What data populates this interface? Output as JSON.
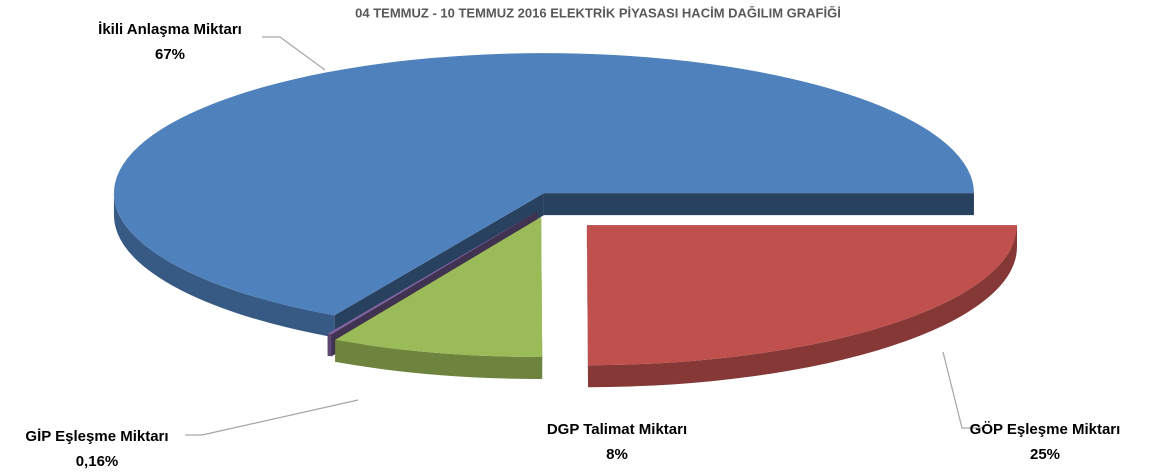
{
  "chart_data": {
    "type": "pie",
    "title": "04 TEMMUZ - 10 TEMMUZ 2016 ELEKTRİK PİYASASI HACİM DAĞILIM GRAFİĞİ",
    "categories": [
      "GÖP Eşleşme Miktarı",
      "DGP Talimat Miktarı",
      "GİP Eşleşme Miktarı",
      "İkili Anlaşma Miktarı"
    ],
    "values": [
      25,
      8,
      0.16,
      67
    ],
    "value_labels": [
      "25%",
      "8%",
      "0,16%",
      "67%"
    ],
    "colors": [
      "#c0504d",
      "#9bbb59",
      "#8064a2",
      "#4f81bd"
    ]
  }
}
